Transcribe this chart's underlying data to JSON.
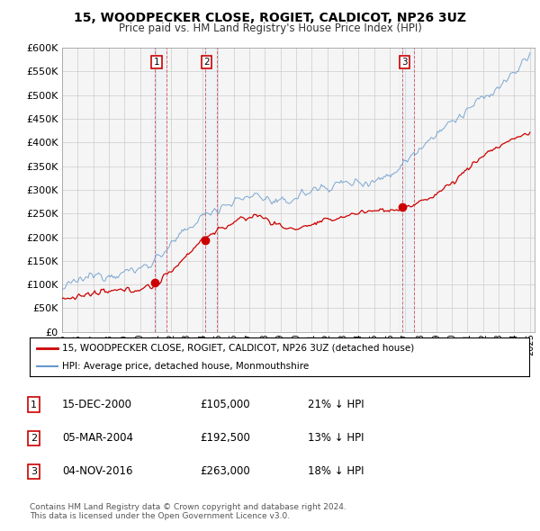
{
  "title": "15, WOODPECKER CLOSE, ROGIET, CALDICOT, NP26 3UZ",
  "subtitle": "Price paid vs. HM Land Registry's House Price Index (HPI)",
  "ytick_values": [
    0,
    50000,
    100000,
    150000,
    200000,
    250000,
    300000,
    350000,
    400000,
    450000,
    500000,
    550000,
    600000
  ],
  "x_start_year": 1995,
  "x_end_year": 2025,
  "red_color": "#cc0000",
  "blue_color": "#6699cc",
  "shade_color": "#ddeeff",
  "sale_years": [
    2000.958,
    2004.17,
    2016.84
  ],
  "sale_values": [
    105000,
    192500,
    263000
  ],
  "sale_labels": [
    "1",
    "2",
    "3"
  ],
  "legend_red": "15, WOODPECKER CLOSE, ROGIET, CALDICOT, NP26 3UZ (detached house)",
  "legend_blue": "HPI: Average price, detached house, Monmouthshire",
  "table_rows": [
    {
      "num": "1",
      "date": "15-DEC-2000",
      "price": "£105,000",
      "hpi": "21% ↓ HPI"
    },
    {
      "num": "2",
      "date": "05-MAR-2004",
      "price": "£192,500",
      "hpi": "13% ↓ HPI"
    },
    {
      "num": "3",
      "date": "04-NOV-2016",
      "price": "£263,000",
      "hpi": "18% ↓ HPI"
    }
  ],
  "footer": "Contains HM Land Registry data © Crown copyright and database right 2024.\nThis data is licensed under the Open Government Licence v3.0.",
  "bg_color": "#ffffff",
  "plot_bg": "#f5f5f5",
  "grid_color": "#cccccc"
}
